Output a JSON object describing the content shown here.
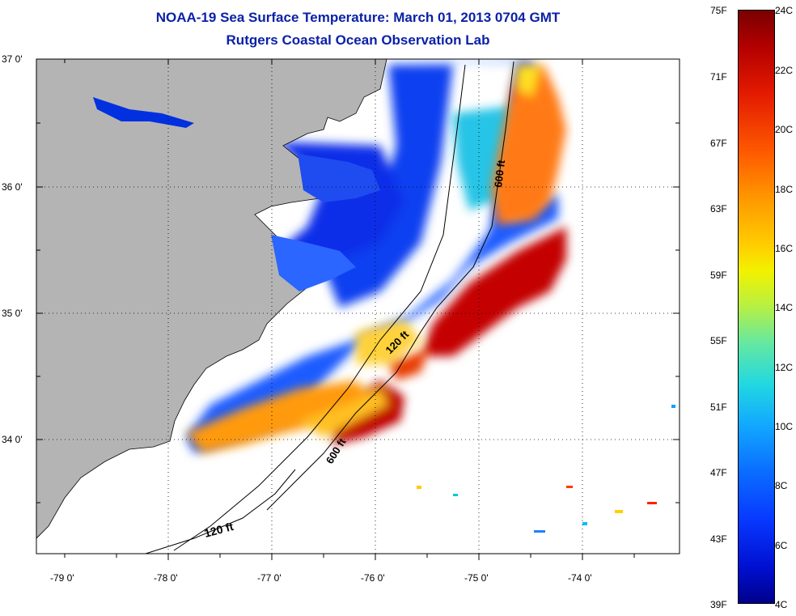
{
  "title_line1": "NOAA-19 Sea Surface Temperature:  March 01, 2013 0704 GMT",
  "title_line2": "Rutgers Coastal Ocean Observation Lab",
  "lat_labels": [
    "37 0'",
    "36 0'",
    "35 0'",
    "34 0'"
  ],
  "lon_labels": [
    "-79 0'",
    "-78 0'",
    "-77 0'",
    "-76 0'",
    "-75 0'",
    "-74 0'"
  ],
  "contour_labels": [
    "600 ft",
    "120 ft",
    "600 ft",
    "120 ft"
  ],
  "colorbar": {
    "fahrenheit": [
      "75F",
      "71F",
      "67F",
      "63F",
      "59F",
      "55F",
      "51F",
      "47F",
      "43F",
      "39F"
    ],
    "celsius": [
      "24C",
      "22C",
      "20C",
      "18C",
      "16C",
      "14C",
      "12C",
      "10C",
      "8C",
      "6C",
      "4C"
    ]
  },
  "colors": {
    "land": "#b4b4b4",
    "title": "#0b21a8",
    "cold": "#0838ff",
    "warm": "#c00000"
  }
}
